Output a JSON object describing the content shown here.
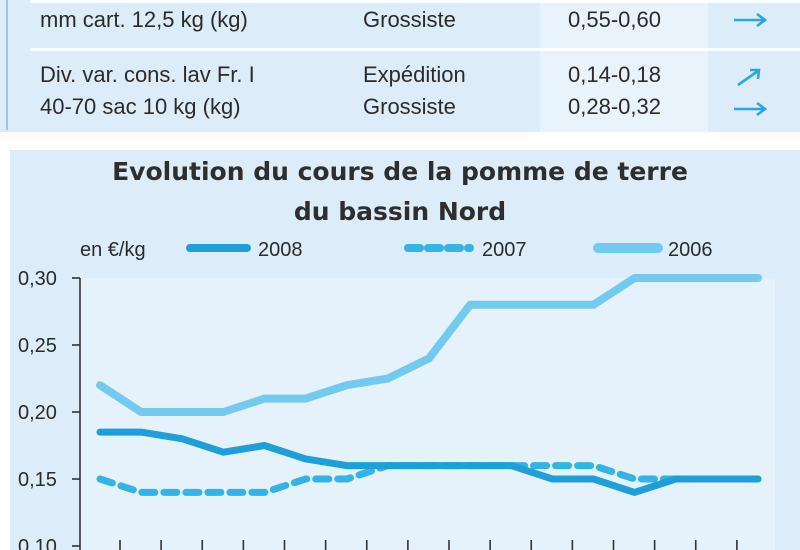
{
  "table": {
    "rows": [
      {
        "product_lines": [
          "",
          "mm cart. 12,5 kg (kg)"
        ],
        "stages": [
          "",
          "Grossiste"
        ],
        "prices": [
          "",
          "0,55-0,60"
        ],
        "trends": [
          "",
          "stable-arrow-icon"
        ]
      },
      {
        "product_lines": [
          "Div. var. cons. lav Fr. I",
          "40-70 sac 10 kg (kg)"
        ],
        "stages": [
          "Expédition",
          "Grossiste"
        ],
        "prices": [
          "0,14-0,18",
          "0,28-0,32"
        ],
        "trends": [
          "up-arrow-icon",
          "stable-arrow-icon"
        ]
      }
    ]
  },
  "chart_data": {
    "type": "line",
    "title": "Evolution du cours de la pomme de terre",
    "subtitle": "du bassin Nord",
    "ylabel": "en €/kg",
    "xlabel": "",
    "ylim": [
      0.1,
      0.3
    ],
    "yticks": [
      "0,10",
      "0,15",
      "0,20",
      "0,25",
      "0,30"
    ],
    "x": [
      1,
      2,
      3,
      4,
      5,
      6,
      7,
      8,
      9,
      10,
      11,
      12,
      13,
      14,
      15,
      16,
      17
    ],
    "series": [
      {
        "name": "2008",
        "style": "solid",
        "color": "#1f9fd9",
        "values": [
          0.185,
          0.185,
          0.18,
          0.17,
          0.175,
          0.165,
          0.16,
          0.16,
          0.16,
          0.16,
          0.16,
          0.15,
          0.15,
          0.14,
          0.15,
          0.15,
          0.15
        ]
      },
      {
        "name": "2007",
        "style": "dashed",
        "color": "#33b3e6",
        "values": [
          0.15,
          0.14,
          0.14,
          0.14,
          0.14,
          0.15,
          0.15,
          0.16,
          0.16,
          0.16,
          0.16,
          0.16,
          0.16,
          0.15,
          0.15,
          0.15,
          0.15
        ]
      },
      {
        "name": "2006",
        "style": "solid",
        "color": "#72cbee",
        "values": [
          0.22,
          0.2,
          0.2,
          0.2,
          0.21,
          0.21,
          0.22,
          0.225,
          0.24,
          0.28,
          0.28,
          0.28,
          0.28,
          0.3,
          0.3,
          0.3,
          0.3
        ]
      }
    ],
    "grid": false,
    "legend_position": "top"
  }
}
